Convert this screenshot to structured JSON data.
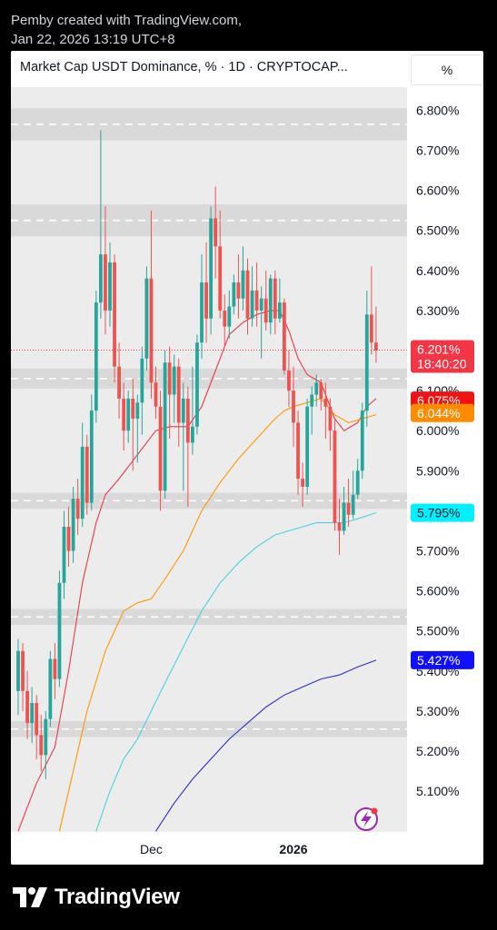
{
  "header": {
    "line1": "Pemby created with TradingView.com,",
    "line2": "Jan 22, 2026 13:19 UTC+8"
  },
  "chart_header": {
    "legend": "Market Cap USDT Dominance, % · 1D · CRYPTOCAP...",
    "scale_button": "%"
  },
  "footer": {
    "brand": "TradingView",
    "logo_icon": "tradingview-logo-icon"
  },
  "colors": {
    "up": "#26a69a",
    "down": "#ef5350",
    "ma_red": "#f23645",
    "ma_orange": "#ff9800",
    "ma_cyan": "#4dd0e1",
    "ma_blue": "#2b2dd6",
    "zone": "#d9d9d9"
  },
  "chart_data": {
    "type": "candlestick",
    "title": "Market Cap USDT Dominance, % · 1D · CRYPTOCAP...",
    "y_ticks": [
      "5.100%",
      "5.200%",
      "5.300%",
      "5.400%",
      "5.500%",
      "5.600%",
      "5.700%",
      "5.800%",
      "5.900%",
      "6.000%",
      "6.100%",
      "6.200%",
      "6.300%",
      "6.400%",
      "6.500%",
      "6.600%",
      "6.700%",
      "6.800%"
    ],
    "y_tick_values": [
      5.1,
      5.2,
      5.3,
      5.4,
      5.5,
      5.6,
      5.7,
      5.8,
      5.9,
      6.0,
      6.1,
      6.2,
      6.3,
      6.4,
      6.5,
      6.6,
      6.7,
      6.8
    ],
    "ylim": [
      5.0,
      6.85
    ],
    "x_ticks": [
      {
        "label": "Dec",
        "index": 29,
        "bold": false
      },
      {
        "label": "2026",
        "index": 60,
        "bold": true
      }
    ],
    "grid": false,
    "zones": [
      {
        "low": 6.725,
        "high": 6.805
      },
      {
        "low": 6.485,
        "high": 6.565
      },
      {
        "low": 6.105,
        "high": 6.155
      },
      {
        "low": 5.805,
        "high": 5.845
      },
      {
        "low": 5.515,
        "high": 5.555
      },
      {
        "low": 5.235,
        "high": 5.275
      }
    ],
    "candles": [
      [
        5.35,
        5.45,
        5.29,
        5.48
      ],
      [
        5.45,
        5.35,
        5.3,
        5.47
      ],
      [
        5.35,
        5.27,
        5.23,
        5.4
      ],
      [
        5.27,
        5.32,
        5.22,
        5.36
      ],
      [
        5.32,
        5.24,
        5.18,
        5.34
      ],
      [
        5.24,
        5.19,
        5.15,
        5.29
      ],
      [
        5.19,
        5.28,
        5.13,
        5.3
      ],
      [
        5.28,
        5.43,
        5.26,
        5.45
      ],
      [
        5.43,
        5.38,
        5.33,
        5.47
      ],
      [
        5.38,
        5.62,
        5.36,
        5.65
      ],
      [
        5.62,
        5.76,
        5.58,
        5.8
      ],
      [
        5.76,
        5.7,
        5.66,
        5.81
      ],
      [
        5.7,
        5.83,
        5.67,
        5.86
      ],
      [
        5.83,
        5.78,
        5.74,
        5.88
      ],
      [
        5.78,
        5.96,
        5.76,
        6.02
      ],
      [
        5.96,
        5.82,
        5.79,
        5.99
      ],
      [
        5.82,
        6.05,
        5.8,
        6.09
      ],
      [
        6.05,
        6.32,
        6.02,
        6.35
      ],
      [
        6.32,
        6.44,
        6.28,
        6.75
      ],
      [
        6.44,
        6.3,
        6.24,
        6.56
      ],
      [
        6.3,
        6.42,
        6.26,
        6.47
      ],
      [
        6.42,
        6.16,
        6.12,
        6.44
      ],
      [
        6.16,
        6.08,
        6.03,
        6.22
      ],
      [
        6.08,
        6.0,
        5.95,
        6.12
      ],
      [
        6.0,
        6.08,
        5.97,
        6.1
      ],
      [
        6.08,
        6.03,
        5.9,
        6.13
      ],
      [
        6.03,
        6.07,
        5.92,
        6.09
      ],
      [
        6.07,
        6.18,
        5.99,
        6.21
      ],
      [
        6.18,
        6.38,
        6.15,
        6.41
      ],
      [
        6.38,
        6.12,
        6.08,
        6.55
      ],
      [
        6.12,
        6.06,
        6.03,
        6.16
      ],
      [
        6.06,
        5.85,
        5.8,
        6.1
      ],
      [
        5.85,
        6.17,
        5.83,
        6.2
      ],
      [
        6.17,
        6.09,
        5.98,
        6.21
      ],
      [
        6.09,
        6.16,
        6.02,
        6.19
      ],
      [
        6.16,
        6.02,
        5.96,
        6.18
      ],
      [
        6.02,
        6.08,
        5.85,
        6.12
      ],
      [
        6.08,
        5.97,
        5.81,
        6.11
      ],
      [
        5.97,
        6.01,
        5.94,
        6.16
      ],
      [
        6.01,
        6.22,
        5.99,
        6.24
      ],
      [
        6.22,
        6.37,
        6.18,
        6.44
      ],
      [
        6.37,
        6.28,
        6.22,
        6.47
      ],
      [
        6.28,
        6.53,
        6.24,
        6.56
      ],
      [
        6.53,
        6.46,
        6.38,
        6.61
      ],
      [
        6.46,
        6.3,
        6.28,
        6.55
      ],
      [
        6.3,
        6.26,
        6.21,
        6.34
      ],
      [
        6.26,
        6.31,
        6.23,
        6.35
      ],
      [
        6.31,
        6.37,
        6.29,
        6.39
      ],
      [
        6.37,
        6.33,
        6.28,
        6.44
      ],
      [
        6.33,
        6.4,
        6.3,
        6.46
      ],
      [
        6.4,
        6.28,
        6.24,
        6.43
      ],
      [
        6.28,
        6.35,
        6.26,
        6.41
      ],
      [
        6.35,
        6.3,
        6.26,
        6.42
      ],
      [
        6.3,
        6.33,
        6.18,
        6.36
      ],
      [
        6.33,
        6.27,
        6.25,
        6.4
      ],
      [
        6.27,
        6.38,
        6.24,
        6.39
      ],
      [
        6.38,
        6.28,
        6.24,
        6.4
      ],
      [
        6.28,
        6.32,
        6.27,
        6.38
      ],
      [
        6.32,
        6.15,
        6.14,
        6.33
      ],
      [
        6.15,
        6.1,
        6.06,
        6.2
      ],
      [
        6.1,
        6.02,
        5.96,
        6.16
      ],
      [
        6.02,
        5.88,
        5.84,
        6.05
      ],
      [
        5.88,
        5.86,
        5.81,
        5.92
      ],
      [
        5.86,
        6.06,
        5.84,
        6.08
      ],
      [
        6.06,
        6.09,
        5.99,
        6.11
      ],
      [
        6.09,
        6.12,
        6.06,
        6.14
      ],
      [
        6.12,
        6.08,
        6.05,
        6.13
      ],
      [
        6.08,
        6.06,
        5.98,
        6.12
      ],
      [
        6.06,
        6.0,
        5.95,
        6.08
      ],
      [
        6.0,
        5.77,
        5.75,
        6.03
      ],
      [
        5.77,
        5.75,
        5.69,
        5.83
      ],
      [
        5.75,
        5.82,
        5.74,
        5.86
      ],
      [
        5.82,
        5.79,
        5.76,
        5.88
      ],
      [
        5.79,
        5.84,
        5.78,
        5.9
      ],
      [
        5.84,
        5.9,
        5.83,
        5.93
      ],
      [
        5.9,
        6.05,
        5.88,
        6.07
      ],
      [
        6.05,
        6.29,
        6.01,
        6.35
      ],
      [
        6.29,
        6.22,
        6.19,
        6.41
      ],
      [
        6.22,
        6.2,
        6.17,
        6.31
      ]
    ],
    "ma_series": [
      {
        "color": "#f23645",
        "values": [
          [
            0,
            5.0
          ],
          [
            4,
            5.12
          ],
          [
            8,
            5.21
          ],
          [
            11,
            5.4
          ],
          [
            14,
            5.62
          ],
          [
            17,
            5.77
          ],
          [
            19,
            5.84
          ],
          [
            22,
            5.88
          ],
          [
            26,
            5.94
          ],
          [
            30,
            6.0
          ],
          [
            33,
            6.01
          ],
          [
            37,
            6.01
          ],
          [
            40,
            6.06
          ],
          [
            43,
            6.15
          ],
          [
            46,
            6.24
          ],
          [
            49,
            6.27
          ],
          [
            52,
            6.29
          ],
          [
            55,
            6.3
          ],
          [
            57,
            6.3
          ],
          [
            59,
            6.25
          ],
          [
            61,
            6.18
          ],
          [
            63,
            6.14
          ],
          [
            66,
            6.12
          ],
          [
            69,
            6.03
          ],
          [
            71,
            6.0
          ],
          [
            74,
            6.02
          ],
          [
            76,
            6.06
          ],
          [
            78,
            6.08
          ]
        ]
      },
      {
        "color": "#ff9800",
        "values": [
          [
            9,
            5.0
          ],
          [
            12,
            5.15
          ],
          [
            15,
            5.3
          ],
          [
            19,
            5.45
          ],
          [
            23,
            5.55
          ],
          [
            26,
            5.57
          ],
          [
            29,
            5.58
          ],
          [
            32,
            5.63
          ],
          [
            36,
            5.7
          ],
          [
            40,
            5.8
          ],
          [
            44,
            5.87
          ],
          [
            48,
            5.93
          ],
          [
            52,
            5.98
          ],
          [
            56,
            6.03
          ],
          [
            58,
            6.05
          ],
          [
            60,
            6.06
          ],
          [
            63,
            6.07
          ],
          [
            66,
            6.08
          ],
          [
            69,
            6.04
          ],
          [
            72,
            6.02
          ],
          [
            75,
            6.03
          ],
          [
            78,
            6.04
          ]
        ]
      },
      {
        "color": "#4dd0e1",
        "values": [
          [
            17,
            5.0
          ],
          [
            20,
            5.1
          ],
          [
            23,
            5.18
          ],
          [
            26,
            5.23
          ],
          [
            29,
            5.3
          ],
          [
            32,
            5.37
          ],
          [
            36,
            5.46
          ],
          [
            40,
            5.55
          ],
          [
            44,
            5.62
          ],
          [
            48,
            5.67
          ],
          [
            52,
            5.71
          ],
          [
            56,
            5.74
          ],
          [
            59,
            5.75
          ],
          [
            62,
            5.76
          ],
          [
            65,
            5.77
          ],
          [
            68,
            5.77
          ],
          [
            71,
            5.77
          ],
          [
            74,
            5.78
          ],
          [
            78,
            5.795
          ]
        ]
      },
      {
        "color": "#2b2dd6",
        "values": [
          [
            30,
            5.0
          ],
          [
            34,
            5.07
          ],
          [
            38,
            5.13
          ],
          [
            42,
            5.18
          ],
          [
            46,
            5.23
          ],
          [
            50,
            5.27
          ],
          [
            54,
            5.31
          ],
          [
            58,
            5.34
          ],
          [
            62,
            5.36
          ],
          [
            66,
            5.38
          ],
          [
            70,
            5.39
          ],
          [
            74,
            5.41
          ],
          [
            78,
            5.427
          ]
        ]
      }
    ],
    "price_labels": [
      {
        "value": 6.201,
        "text": "6.201%",
        "subtext": "18:40:20",
        "color": "#f23645",
        "text_color": "#ffffff"
      },
      {
        "value": 6.075,
        "text": "6.075%",
        "color": "#f01313",
        "text_color": "#ffffff"
      },
      {
        "value": 6.044,
        "text": "6.044%",
        "color": "#ff8c00",
        "text_color": "#ffffff"
      },
      {
        "value": 5.795,
        "text": "5.795%",
        "color": "#00f0ff",
        "text_color": "#131722"
      },
      {
        "value": 5.427,
        "text": "5.427%",
        "color": "#1010ff",
        "text_color": "#ffffff"
      }
    ],
    "current_price": 6.201
  }
}
